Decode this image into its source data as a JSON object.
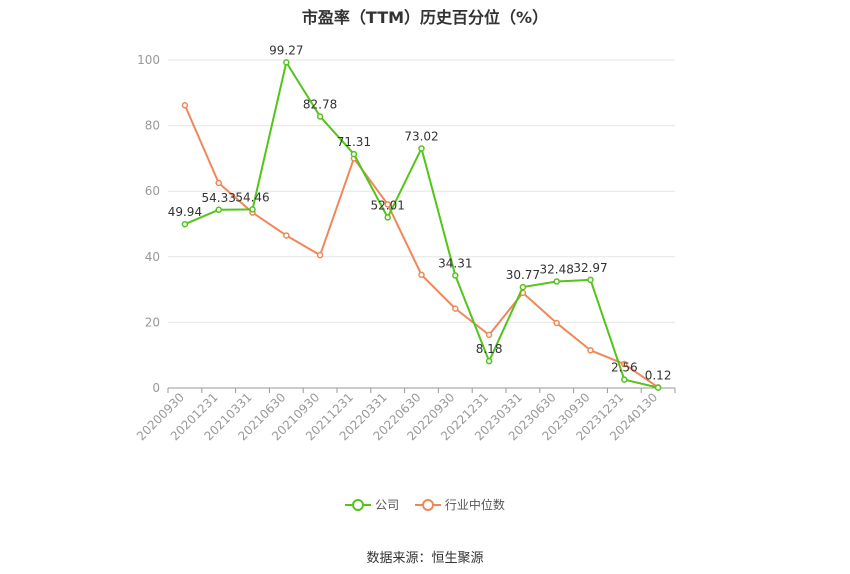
{
  "chart_data": {
    "type": "line",
    "title": "市盈率（TTM）历史百分位（%）",
    "categories": [
      "20200930",
      "20201231",
      "20210331",
      "20210630",
      "20210930",
      "20211231",
      "20220331",
      "20220630",
      "20220930",
      "20221231",
      "20230331",
      "20230630",
      "20230930",
      "20231231",
      "20240130"
    ],
    "series": [
      {
        "name": "公司",
        "color": "#52c41a",
        "values": [
          49.94,
          54.33,
          54.46,
          99.27,
          82.78,
          71.31,
          52.01,
          73.02,
          34.31,
          8.18,
          30.77,
          32.48,
          32.97,
          2.56,
          0.12
        ],
        "labels": [
          "49.94",
          "54.33",
          "54.46",
          "99.27",
          "82.78",
          "71.31",
          "52.01",
          "73.02",
          "34.31",
          "8.18",
          "30.77",
          "32.48",
          "32.97",
          "2.56",
          "0.12"
        ]
      },
      {
        "name": "行业中位数",
        "color": "#f0875a",
        "values": [
          86.2,
          62.5,
          53.5,
          46.5,
          40.5,
          70.0,
          56.0,
          34.5,
          24.2,
          16.2,
          29.0,
          19.8,
          11.5,
          7.3,
          0.2
        ]
      }
    ],
    "yticks": [
      0,
      20,
      40,
      60,
      80,
      100
    ],
    "ylim": [
      0,
      100
    ],
    "grid": true,
    "legend_position": "bottom"
  },
  "source": "数据来源：恒生聚源"
}
